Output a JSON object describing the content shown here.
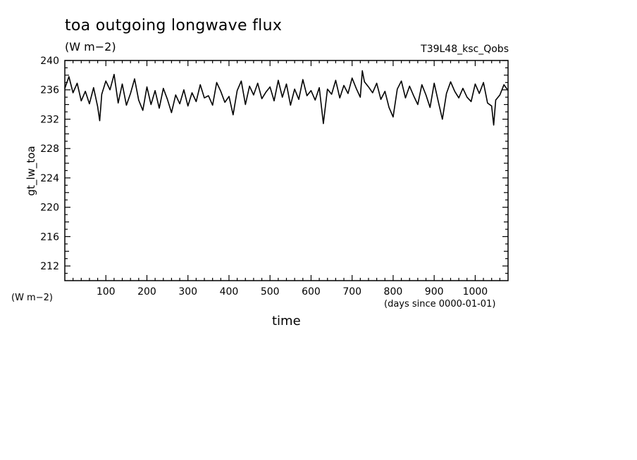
{
  "chart_data": {
    "type": "line",
    "title": "toa outgoing longwave flux",
    "subtitle": "(W m−2)",
    "experiment": "T39L48_ksc_Qobs",
    "ylabel": "gt_lw_toa",
    "yunits": "(W m−2)",
    "xlabel": "time",
    "xunits": "(days since 0000-01-01)",
    "xlim": [
      0,
      1080
    ],
    "ylim": [
      210,
      240
    ],
    "xticks": [
      100,
      200,
      300,
      400,
      500,
      600,
      700,
      800,
      900,
      1000
    ],
    "yticks": [
      212,
      216,
      220,
      224,
      228,
      232,
      236,
      240
    ],
    "grid": false,
    "series": [
      {
        "color": "#000000",
        "x": [
          0,
          10,
          20,
          30,
          40,
          50,
          60,
          70,
          80,
          85,
          90,
          100,
          110,
          120,
          130,
          140,
          150,
          160,
          170,
          180,
          190,
          200,
          210,
          220,
          230,
          240,
          250,
          260,
          270,
          280,
          290,
          300,
          310,
          320,
          330,
          340,
          350,
          360,
          370,
          380,
          390,
          400,
          410,
          420,
          430,
          440,
          450,
          460,
          470,
          480,
          490,
          500,
          510,
          520,
          530,
          540,
          550,
          560,
          570,
          580,
          590,
          600,
          610,
          620,
          630,
          640,
          650,
          660,
          670,
          680,
          690,
          700,
          710,
          720,
          725,
          730,
          740,
          750,
          760,
          770,
          780,
          790,
          800,
          810,
          820,
          830,
          840,
          850,
          860,
          870,
          880,
          890,
          900,
          910,
          920,
          930,
          940,
          950,
          960,
          970,
          980,
          990,
          1000,
          1010,
          1020,
          1030,
          1040,
          1045,
          1050,
          1060,
          1070,
          1080
        ],
        "values": [
          236.2,
          237.8,
          235.6,
          236.9,
          234.5,
          235.8,
          234.1,
          236.3,
          233.7,
          231.8,
          235.4,
          237.2,
          236.0,
          238.1,
          234.2,
          236.8,
          233.9,
          235.5,
          237.5,
          234.6,
          233.2,
          236.4,
          234.0,
          235.9,
          233.5,
          236.2,
          234.7,
          232.9,
          235.3,
          234.1,
          236.0,
          233.8,
          235.6,
          234.4,
          236.7,
          234.9,
          235.2,
          233.9,
          237.0,
          235.8,
          234.3,
          235.1,
          232.6,
          235.9,
          237.2,
          234.0,
          236.5,
          235.3,
          236.9,
          234.8,
          235.7,
          236.4,
          234.5,
          237.3,
          235.0,
          236.8,
          233.9,
          236.1,
          234.7,
          237.4,
          235.2,
          235.9,
          234.6,
          236.3,
          231.4,
          236.1,
          235.4,
          237.3,
          234.9,
          236.6,
          235.5,
          237.6,
          236.2,
          235.0,
          238.6,
          237.1,
          236.4,
          235.6,
          236.9,
          234.7,
          235.8,
          233.6,
          232.3,
          236.1,
          237.2,
          234.9,
          236.5,
          235.2,
          234.0,
          236.7,
          235.3,
          233.6,
          236.9,
          234.4,
          232.0,
          235.5,
          237.1,
          235.8,
          234.9,
          236.2,
          235.0,
          234.4,
          236.8,
          235.5,
          237.0,
          234.2,
          233.8,
          231.2,
          234.6,
          235.3,
          236.7,
          235.9
        ]
      }
    ]
  }
}
